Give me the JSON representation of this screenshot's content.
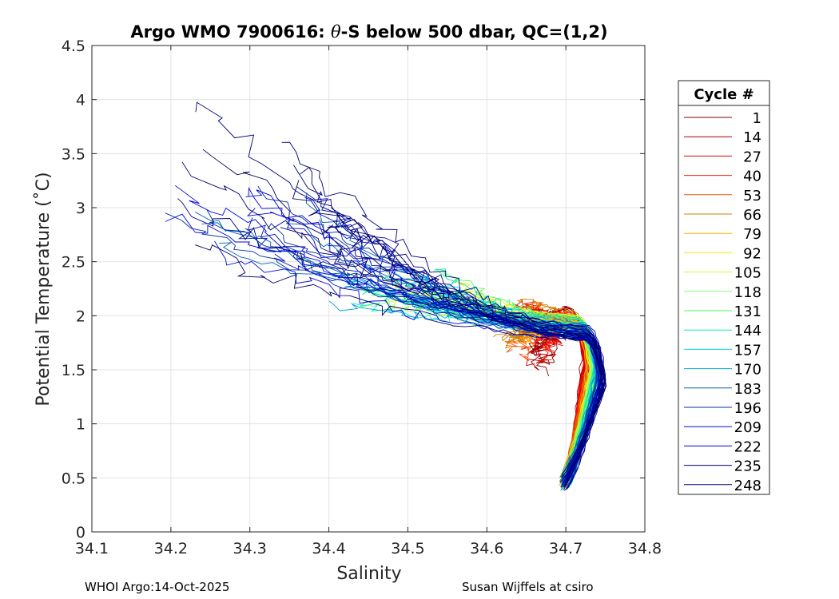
{
  "chart_data": {
    "type": "line",
    "title": "Argo WMO 7900616: θ-S below 500 dbar,  QC=(1,2)",
    "title_prefix": "Argo WMO 7900616: ",
    "title_theta": "θ",
    "title_suffix": "-S below 500 dbar,  QC=(1,2)",
    "xlabel": "Salinity",
    "ylabel": "Potential Temperature (˚C)",
    "xlim": [
      34.1,
      34.8
    ],
    "ylim": [
      0,
      4.5
    ],
    "xticks": [
      "34.1",
      "34.2",
      "34.3",
      "34.4",
      "34.5",
      "34.6",
      "34.7",
      "34.8"
    ],
    "yticks": [
      "0",
      "0.5",
      "1",
      "1.5",
      "2",
      "2.5",
      "3",
      "3.5",
      "4",
      "4.5"
    ],
    "grid": true,
    "legend_title": "Cycle #",
    "legend_position": "right",
    "series": [
      {
        "name": "1",
        "color": "#7f0000"
      },
      {
        "name": "14",
        "color": "#b00000"
      },
      {
        "name": "27",
        "color": "#e00000"
      },
      {
        "name": "40",
        "color": "#ff1a00"
      },
      {
        "name": "53",
        "color": "#ff5000"
      },
      {
        "name": "66",
        "color": "#d08000"
      },
      {
        "name": "79",
        "color": "#ffb000"
      },
      {
        "name": "92",
        "color": "#ffe800"
      },
      {
        "name": "105",
        "color": "#c8ff30"
      },
      {
        "name": "118",
        "color": "#80ff70"
      },
      {
        "name": "131",
        "color": "#40ff60"
      },
      {
        "name": "144",
        "color": "#10e8b0"
      },
      {
        "name": "157",
        "color": "#00d8e8"
      },
      {
        "name": "170",
        "color": "#00a0e0"
      },
      {
        "name": "183",
        "color": "#0060b0"
      },
      {
        "name": "196",
        "color": "#0030a0"
      },
      {
        "name": "209",
        "color": "#0010c0"
      },
      {
        "name": "222",
        "color": "#0000e0"
      },
      {
        "name": "235",
        "color": "#000080"
      },
      {
        "name": "248",
        "color": "#00006a"
      }
    ]
  },
  "footer": {
    "left": "WHOI Argo:14-Oct-2025",
    "right": "Susan Wijffels at csiro"
  }
}
